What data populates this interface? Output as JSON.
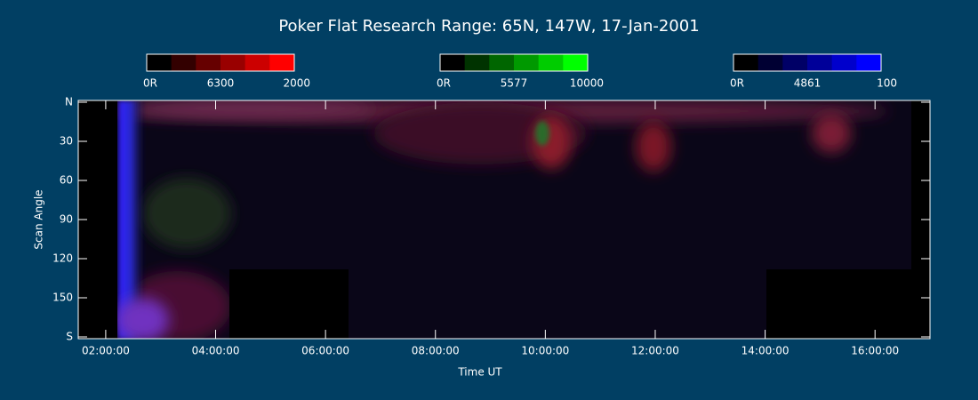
{
  "chart_data": {
    "type": "keogram",
    "title": "Poker Flat Research Range: 65N, 147W, 17-Jan-2001",
    "colorbars": [
      {
        "name": "6300",
        "color": "#ff0000",
        "lim": [
          0,
          2000
        ],
        "ticks": [
          {
            "value": 0,
            "label": "0R"
          },
          2000
        ]
      },
      {
        "name": "5577",
        "color": "#00ff00",
        "lim": [
          0,
          10000
        ],
        "ticks": [
          {
            "value": 0,
            "label": "0R"
          },
          10000
        ]
      },
      {
        "name": "4861",
        "color": "#0000ff",
        "lim": [
          0,
          100
        ],
        "ticks": [
          {
            "value": 0,
            "label": "0R"
          },
          100
        ]
      }
    ],
    "x_label": "Time UT",
    "y_label": "Scan Angle",
    "xlim": [
      1.5,
      17
    ],
    "xticks": [
      {
        "value": 2,
        "label": "02:00:00"
      },
      {
        "value": 4,
        "label": "04:00:00"
      },
      {
        "value": 6,
        "label": "06:00:00"
      },
      {
        "value": 8,
        "label": "08:00:00"
      },
      {
        "value": 10,
        "label": "10:00:00"
      },
      {
        "value": 12,
        "label": "12:00:00"
      },
      {
        "value": 14,
        "label": "14:00:00"
      },
      {
        "value": 16,
        "label": "16:00:00"
      }
    ],
    "ylim": [
      0,
      180
    ],
    "yticks": [
      {
        "value": 0,
        "label": "N"
      },
      30,
      60,
      90,
      120,
      150,
      {
        "value": 180,
        "label": "S"
      }
    ]
  }
}
